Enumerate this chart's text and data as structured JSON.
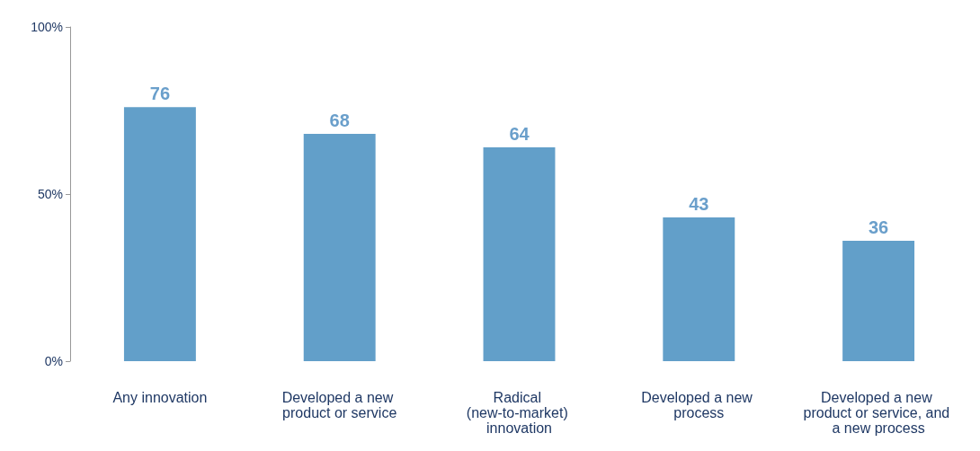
{
  "chart_data": {
    "type": "bar",
    "categories": [
      "Any innovation",
      "Developed a new product or service",
      "Radical (new-to-market) innovation",
      "Developed a new process",
      "Developed a new product or service, and a new process"
    ],
    "values": [
      76,
      68,
      64,
      43,
      36
    ],
    "color": "#629fc9",
    "ylim": [
      0,
      100
    ],
    "yticks": [
      {
        "value": 0,
        "label": "0%"
      },
      {
        "value": 50,
        "label": "50%"
      },
      {
        "value": 100,
        "label": "100%"
      }
    ],
    "data_labels": true,
    "grid": false
  }
}
